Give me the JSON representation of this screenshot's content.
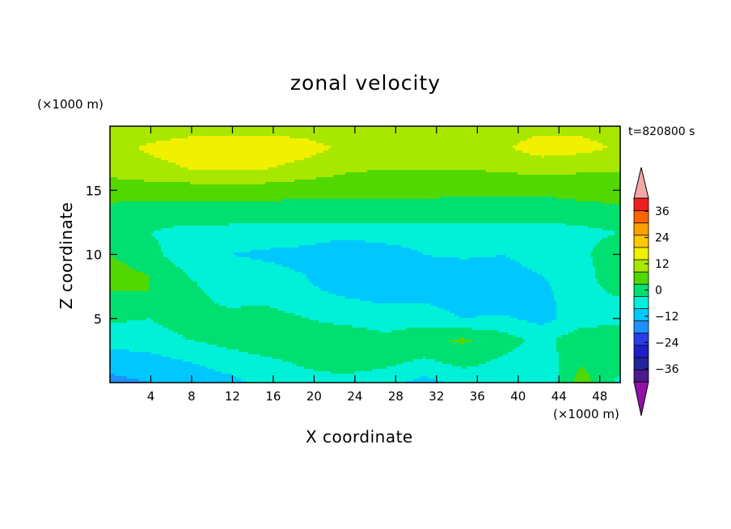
{
  "chart_data": {
    "type": "heatmap",
    "title": "zonal velocity",
    "xlabel": "X coordinate",
    "ylabel": "Z coordinate",
    "x_unit": "(×1000 m)",
    "z_unit": "(×1000 m)",
    "time_label": "t=820800 s",
    "xlim": [
      0,
      50
    ],
    "ylim": [
      0,
      20
    ],
    "x_ticks": [
      4,
      8,
      12,
      16,
      20,
      24,
      28,
      32,
      36,
      40,
      44,
      48
    ],
    "y_ticks": [
      5,
      10,
      15
    ],
    "colorbar": {
      "levels": [
        -42,
        -36,
        -30,
        -24,
        -18,
        -12,
        -6,
        0,
        6,
        12,
        18,
        24,
        30,
        36,
        42
      ],
      "tick_labels": [
        "36",
        "24",
        "12",
        "0",
        "−12",
        "−24",
        "−36"
      ],
      "tick_values": [
        36,
        24,
        12,
        0,
        -12,
        -24,
        -36
      ],
      "colors": [
        "#4c1a8c",
        "#23239b",
        "#1e1ec8",
        "#2a3ce8",
        "#1e90ff",
        "#00c8ff",
        "#00f0d8",
        "#00e070",
        "#50d800",
        "#a8e800",
        "#f0f000",
        "#ffc800",
        "#ffa000",
        "#ff6400",
        "#f01e1e"
      ],
      "under_color": "#9010a8",
      "over_color": "#f4a8a8"
    },
    "field_rows_top_to_bottom": [
      [
        14,
        14,
        15,
        15,
        15,
        15,
        14,
        13,
        14,
        15,
        15,
        16,
        16,
        16
      ],
      [
        16,
        19,
        21,
        22,
        22,
        20,
        17,
        15,
        14,
        15,
        17,
        21,
        20,
        17
      ],
      [
        14,
        16,
        18,
        19,
        18,
        16,
        13,
        12,
        12,
        12,
        13,
        14,
        13,
        13
      ],
      [
        9,
        9,
        9,
        9,
        9,
        8,
        8,
        8,
        8,
        7,
        7,
        7,
        8,
        8
      ],
      [
        4,
        3,
        3,
        3,
        3,
        3,
        3,
        3,
        3,
        3,
        3,
        3,
        4,
        5
      ],
      [
        1,
        0,
        -2,
        -2,
        -3,
        -3,
        -3,
        -3,
        -3,
        -3,
        -3,
        -3,
        -2,
        0
      ],
      [
        6,
        2,
        -4,
        -6,
        -7,
        -8,
        -12,
        -9,
        -6,
        -5,
        -6,
        -4,
        -2,
        6
      ],
      [
        9,
        6,
        0,
        -3,
        -4,
        -6,
        -9,
        -9,
        -8,
        -10,
        -8,
        -6,
        -3,
        5
      ],
      [
        5,
        6,
        2,
        -2,
        -2,
        -5,
        -6,
        -7,
        -7,
        -9,
        -10,
        -8,
        -2,
        0
      ],
      [
        1,
        0,
        3,
        2,
        3,
        0,
        -3,
        -4,
        -3,
        -6,
        -5,
        -8,
        -3,
        -2
      ],
      [
        -4,
        -3,
        0,
        2,
        4,
        6,
        6,
        2,
        5,
        7,
        3,
        -2,
        4,
        5
      ],
      [
        -9,
        -8,
        -6,
        -3,
        -1,
        1,
        3,
        2,
        -1,
        2,
        -1,
        -4,
        5,
        4
      ],
      [
        -14,
        -12,
        -10,
        -8,
        -4,
        -2,
        -2,
        -4,
        -8,
        -4,
        -3,
        -6,
        9,
        -2
      ]
    ]
  }
}
